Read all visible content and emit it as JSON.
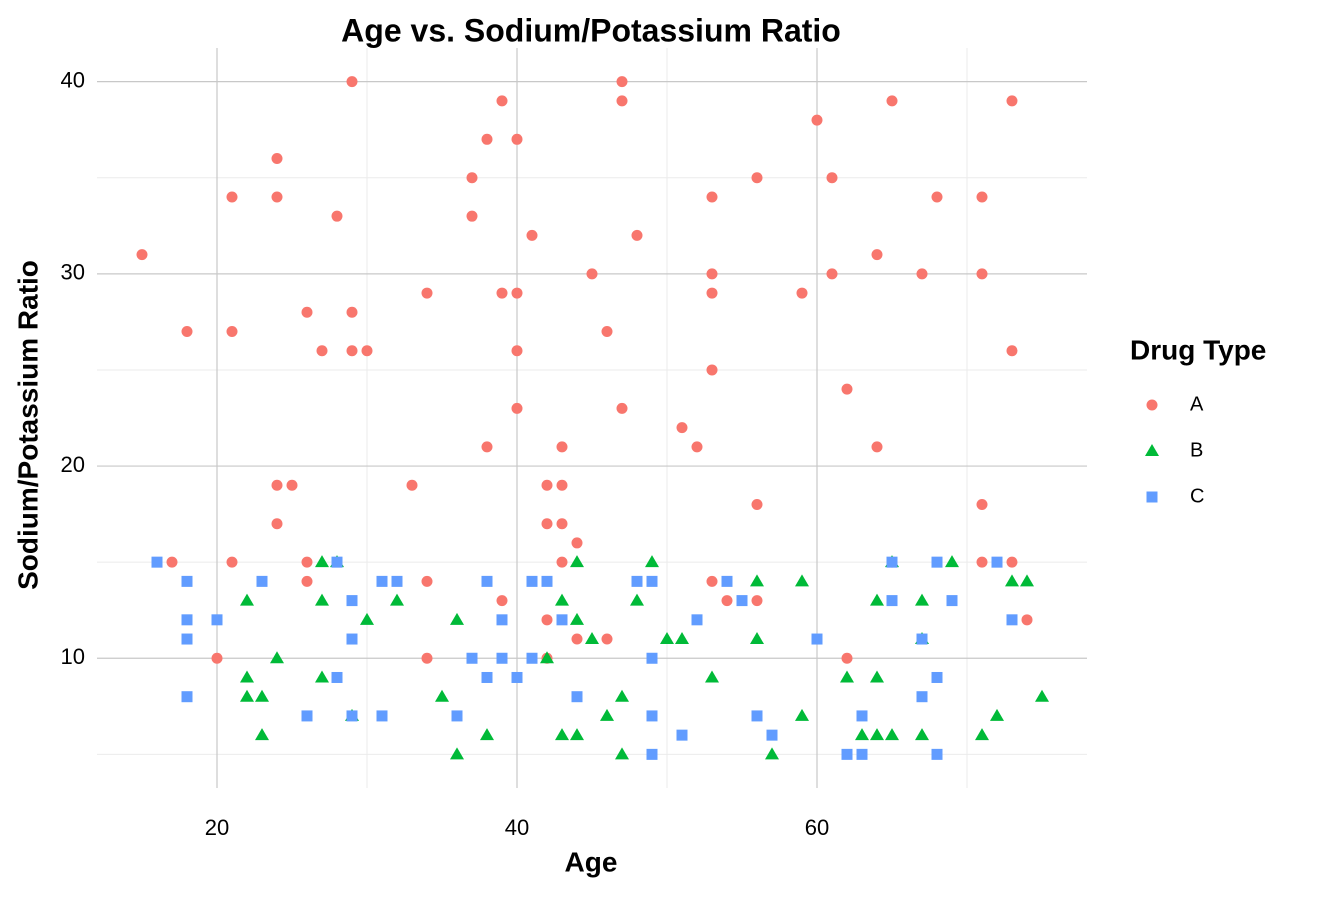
{
  "chart_data": {
    "type": "scatter",
    "title": "Age vs. Sodium/Potassium Ratio",
    "x_label": "Age",
    "y_label": "Sodium/Potassium Ratio",
    "legend_title": "Drug Type",
    "legend_position": "right",
    "grid": true,
    "xlim": [
      12,
      78
    ],
    "xticks": [
      20,
      40,
      60
    ],
    "x_minor_grid": [
      30,
      50,
      70
    ],
    "ylim": [
      3.25,
      41.75
    ],
    "yticks": [
      10,
      20,
      30,
      40
    ],
    "y_minor_grid": [
      5,
      15,
      25,
      35
    ],
    "series": [
      {
        "name": "A",
        "color": "#F8766D",
        "shape": "circle",
        "x": [
          15,
          17,
          18,
          20,
          21,
          21,
          21,
          24,
          24,
          24,
          24,
          25,
          26,
          26,
          26,
          27,
          28,
          29,
          29,
          29,
          30,
          33,
          34,
          34,
          34,
          37,
          37,
          38,
          38,
          39,
          39,
          39,
          40,
          40,
          40,
          40,
          41,
          42,
          42,
          42,
          42,
          43,
          43,
          43,
          43,
          44,
          44,
          45,
          46,
          46,
          47,
          47,
          47,
          48,
          51,
          52,
          53,
          53,
          53,
          53,
          53,
          54,
          56,
          56,
          56,
          59,
          60,
          61,
          61,
          62,
          62,
          64,
          64,
          65,
          65,
          67,
          67,
          68,
          71,
          71,
          71,
          71,
          73,
          73,
          73,
          74
        ],
        "values": [
          31,
          15,
          27,
          10,
          34,
          27,
          15,
          36,
          34,
          19,
          17,
          19,
          28,
          15,
          14,
          26,
          33,
          40,
          28,
          26,
          26,
          19,
          29,
          14,
          10,
          35,
          33,
          37,
          21,
          39,
          29,
          13,
          37,
          29,
          26,
          23,
          32,
          19,
          17,
          12,
          10,
          21,
          19,
          17,
          15,
          16,
          11,
          30,
          27,
          11,
          40,
          39,
          23,
          32,
          22,
          21,
          34,
          30,
          29,
          25,
          14,
          13,
          35,
          18,
          13,
          29,
          38,
          35,
          30,
          24,
          10,
          31,
          21,
          39,
          15,
          30,
          11,
          34,
          34,
          30,
          18,
          15,
          39,
          26,
          15,
          12
        ]
      },
      {
        "name": "B",
        "color": "#00BA38",
        "shape": "triangle",
        "x": [
          22,
          22,
          22,
          23,
          23,
          24,
          27,
          27,
          27,
          28,
          29,
          30,
          32,
          35,
          36,
          36,
          38,
          42,
          43,
          43,
          44,
          44,
          44,
          45,
          46,
          47,
          47,
          48,
          49,
          50,
          51,
          53,
          56,
          56,
          57,
          59,
          59,
          62,
          63,
          64,
          64,
          64,
          65,
          65,
          67,
          67,
          67,
          69,
          71,
          72,
          73,
          74,
          75
        ],
        "values": [
          9,
          13,
          8,
          8,
          6,
          10,
          15,
          13,
          9,
          15,
          7,
          12,
          13,
          8,
          12,
          5,
          6,
          10,
          13,
          6,
          15,
          12,
          6,
          11,
          7,
          8,
          5,
          13,
          15,
          11,
          11,
          9,
          14,
          11,
          5,
          14,
          7,
          9,
          6,
          13,
          9,
          6,
          15,
          6,
          13,
          11,
          6,
          15,
          6,
          7,
          14,
          14,
          8
        ]
      },
      {
        "name": "C",
        "color": "#619CFF",
        "shape": "square",
        "x": [
          16,
          18,
          18,
          18,
          18,
          20,
          23,
          26,
          28,
          28,
          29,
          29,
          29,
          31,
          31,
          32,
          36,
          37,
          38,
          38,
          39,
          39,
          40,
          41,
          41,
          42,
          43,
          44,
          48,
          49,
          49,
          49,
          49,
          51,
          52,
          54,
          55,
          56,
          57,
          60,
          62,
          63,
          63,
          65,
          65,
          67,
          67,
          68,
          68,
          68,
          69,
          72,
          73
        ],
        "values": [
          15,
          14,
          12,
          11,
          8,
          12,
          14,
          7,
          15,
          9,
          13,
          11,
          7,
          14,
          7,
          14,
          7,
          10,
          14,
          9,
          12,
          10,
          9,
          14,
          10,
          14,
          12,
          8,
          14,
          14,
          10,
          7,
          5,
          6,
          12,
          14,
          13,
          7,
          6,
          11,
          5,
          7,
          5,
          15,
          13,
          11,
          8,
          15,
          9,
          5,
          13,
          15,
          12
        ]
      }
    ]
  }
}
